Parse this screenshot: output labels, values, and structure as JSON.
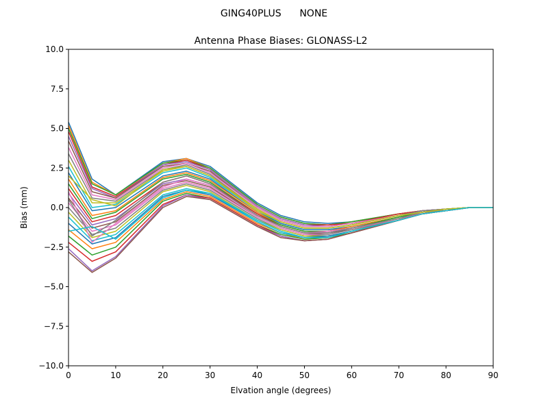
{
  "figure": {
    "suptitle": "GING40PLUS      NONE"
  },
  "chart_data": {
    "type": "line",
    "title": "Antenna Phase Biases: GLONASS-L2",
    "xlabel": "Elvation angle (degrees)",
    "ylabel": "Bias (mm)",
    "xlim": [
      0,
      90
    ],
    "ylim": [
      -10,
      10
    ],
    "xticks": [
      0,
      10,
      20,
      30,
      40,
      50,
      60,
      70,
      80,
      90
    ],
    "yticks": [
      -10.0,
      -7.5,
      -5.0,
      -2.5,
      0.0,
      2.5,
      5.0,
      7.5,
      10.0
    ],
    "xtick_labels": [
      "0",
      "10",
      "20",
      "30",
      "40",
      "50",
      "60",
      "70",
      "80",
      "90"
    ],
    "ytick_labels": [
      "−10.0",
      "−7.5",
      "−5.0",
      "−2.5",
      "0.0",
      "2.5",
      "5.0",
      "7.5",
      "10.0"
    ],
    "grid": false,
    "legend": "none",
    "x": [
      0,
      5,
      10,
      20,
      25,
      30,
      40,
      45,
      50,
      55,
      60,
      70,
      75,
      80,
      85,
      90
    ],
    "series_colors": [
      "#1f77b4",
      "#ff7f0e",
      "#2ca02c",
      "#d62728",
      "#9467bd",
      "#8c564b",
      "#e377c2",
      "#7f7f7f",
      "#bcbd22",
      "#17becf"
    ],
    "series": [
      {
        "values": [
          5.4,
          1.8,
          0.8,
          2.9,
          3.1,
          2.6,
          0.3,
          -0.5,
          -0.9,
          -1.0,
          -0.9,
          -0.4,
          -0.2,
          -0.1,
          0.0,
          0.0
        ]
      },
      {
        "values": [
          5.2,
          1.6,
          0.8,
          2.8,
          3.1,
          2.5,
          0.2,
          -0.6,
          -1.0,
          -1.1,
          -0.9,
          -0.4,
          -0.2,
          -0.1,
          0.0,
          0.0
        ]
      },
      {
        "values": [
          5.0,
          1.5,
          0.8,
          2.8,
          3.0,
          2.5,
          0.2,
          -0.6,
          -1.0,
          -1.1,
          -0.9,
          -0.4,
          -0.2,
          -0.1,
          0.0,
          0.0
        ]
      },
      {
        "values": [
          4.8,
          1.3,
          0.7,
          2.7,
          3.0,
          2.4,
          0.1,
          -0.7,
          -1.1,
          -1.1,
          -1.0,
          -0.4,
          -0.2,
          -0.1,
          0.0,
          0.0
        ]
      },
      {
        "values": [
          4.5,
          1.2,
          0.6,
          2.7,
          2.9,
          2.4,
          0.1,
          -0.7,
          -1.1,
          -1.2,
          -1.0,
          -0.5,
          -0.2,
          -0.1,
          0.0,
          0.0
        ]
      },
      {
        "values": [
          4.2,
          1.0,
          0.6,
          2.6,
          2.8,
          2.3,
          0.0,
          -0.8,
          -1.2,
          -1.2,
          -1.0,
          -0.5,
          -0.2,
          -0.1,
          0.0,
          0.0
        ]
      },
      {
        "values": [
          3.8,
          0.8,
          0.5,
          2.5,
          2.8,
          2.2,
          0.0,
          -0.8,
          -1.2,
          -1.2,
          -1.0,
          -0.5,
          -0.2,
          -0.1,
          0.0,
          0.0
        ]
      },
      {
        "values": [
          3.4,
          0.6,
          0.4,
          2.4,
          2.7,
          2.1,
          -0.1,
          -0.9,
          -1.3,
          -1.3,
          -1.1,
          -0.5,
          -0.2,
          -0.1,
          0.0,
          0.0
        ]
      },
      {
        "values": [
          3.0,
          0.3,
          0.3,
          2.3,
          2.6,
          2.0,
          -0.1,
          -0.9,
          -1.3,
          -1.3,
          -1.1,
          -0.5,
          -0.3,
          -0.1,
          0.0,
          0.0
        ]
      },
      {
        "values": [
          2.6,
          0.0,
          0.2,
          2.2,
          2.5,
          1.9,
          -0.2,
          -1.0,
          -1.4,
          -1.4,
          -1.2,
          -0.6,
          -0.3,
          -0.1,
          0.0,
          0.0
        ]
      },
      {
        "values": [
          2.2,
          -0.2,
          0.0,
          2.0,
          2.3,
          1.8,
          -0.3,
          -1.0,
          -1.4,
          -1.4,
          -1.2,
          -0.6,
          -0.3,
          -0.1,
          0.0,
          0.0
        ]
      },
      {
        "values": [
          1.8,
          -0.5,
          -0.2,
          1.9,
          2.2,
          1.7,
          -0.3,
          -1.1,
          -1.5,
          -1.5,
          -1.2,
          -0.6,
          -0.3,
          -0.1,
          0.0,
          0.0
        ]
      },
      {
        "values": [
          1.5,
          -0.7,
          -0.3,
          1.8,
          2.1,
          1.6,
          -0.4,
          -1.1,
          -1.5,
          -1.5,
          -1.3,
          -0.6,
          -0.3,
          -0.1,
          0.0,
          0.0
        ]
      },
      {
        "values": [
          1.2,
          -0.9,
          -0.5,
          1.6,
          2.0,
          1.5,
          -0.4,
          -1.2,
          -1.6,
          -1.5,
          -1.3,
          -0.7,
          -0.3,
          -0.2,
          0.0,
          0.0
        ]
      },
      {
        "values": [
          0.9,
          -1.1,
          -0.7,
          1.5,
          1.8,
          1.4,
          -0.5,
          -1.2,
          -1.6,
          -1.6,
          -1.3,
          -0.7,
          -0.3,
          -0.2,
          0.0,
          0.0
        ]
      },
      {
        "values": [
          0.6,
          -1.3,
          -0.9,
          1.4,
          1.7,
          1.3,
          -0.6,
          -1.3,
          -1.7,
          -1.6,
          -1.4,
          -0.7,
          -0.4,
          -0.2,
          0.0,
          0.0
        ]
      },
      {
        "values": [
          0.3,
          -1.5,
          -1.1,
          1.2,
          1.6,
          1.2,
          -0.6,
          -1.3,
          -1.7,
          -1.7,
          -1.4,
          -0.7,
          -0.4,
          -0.2,
          0.0,
          0.0
        ]
      },
      {
        "values": [
          0.0,
          -1.7,
          -1.3,
          1.1,
          1.5,
          1.1,
          -0.7,
          -1.4,
          -1.8,
          -1.7,
          -1.4,
          -0.8,
          -0.4,
          -0.2,
          0.0,
          0.0
        ]
      },
      {
        "values": [
          -0.3,
          -1.9,
          -1.5,
          1.0,
          1.4,
          1.0,
          -0.8,
          -1.4,
          -1.8,
          -1.8,
          -1.5,
          -0.8,
          -0.4,
          -0.2,
          0.0,
          0.0
        ]
      },
      {
        "values": [
          -0.6,
          -2.1,
          -1.7,
          0.8,
          1.2,
          0.9,
          -0.8,
          -1.5,
          -1.9,
          -1.8,
          -1.5,
          -0.8,
          -0.4,
          -0.2,
          0.0,
          0.0
        ]
      },
      {
        "values": [
          -1.0,
          -2.3,
          -1.9,
          0.7,
          1.1,
          0.8,
          -0.9,
          -1.6,
          -1.9,
          -1.8,
          -1.5,
          -0.8,
          -0.4,
          -0.2,
          0.0,
          0.0
        ]
      },
      {
        "values": [
          -1.4,
          -2.6,
          -2.2,
          0.5,
          1.0,
          0.7,
          -1.0,
          -1.6,
          -2.0,
          -1.9,
          -1.6,
          -0.8,
          -0.4,
          -0.2,
          0.0,
          0.0
        ]
      },
      {
        "values": [
          -1.8,
          -3.0,
          -2.5,
          0.4,
          0.9,
          0.6,
          -1.1,
          -1.7,
          -2.0,
          -1.9,
          -1.6,
          -0.8,
          -0.4,
          -0.2,
          0.0,
          0.0
        ]
      },
      {
        "values": [
          -2.2,
          -3.4,
          -2.8,
          0.2,
          0.8,
          0.6,
          -1.1,
          -1.8,
          -2.1,
          -2.0,
          -1.6,
          -0.8,
          -0.4,
          -0.2,
          0.0,
          0.0
        ]
      },
      {
        "values": [
          -2.6,
          -4.0,
          -3.1,
          0.1,
          0.8,
          0.5,
          -1.2,
          -1.8,
          -2.1,
          -2.0,
          -1.6,
          -0.8,
          -0.4,
          -0.2,
          0.0,
          0.0
        ]
      },
      {
        "values": [
          -2.8,
          -4.1,
          -3.2,
          0.0,
          0.7,
          0.5,
          -1.2,
          -1.9,
          -2.1,
          -2.0,
          -1.6,
          -0.8,
          -0.4,
          -0.2,
          0.0,
          0.0
        ]
      },
      {
        "values": [
          1.0,
          -2.2,
          -1.0,
          1.3,
          1.8,
          1.4,
          -0.5,
          -1.2,
          -1.6,
          -1.5,
          -1.3,
          -0.7,
          -0.3,
          -0.2,
          0.0,
          0.0
        ]
      },
      {
        "values": [
          0.5,
          -1.8,
          -0.8,
          1.6,
          2.0,
          1.5,
          -0.5,
          -1.2,
          -1.6,
          -1.6,
          -1.3,
          -0.7,
          -0.3,
          -0.2,
          0.0,
          0.0
        ]
      },
      {
        "values": [
          2.0,
          0.5,
          0.1,
          2.4,
          2.6,
          2.0,
          -0.2,
          -0.9,
          -1.3,
          -1.3,
          -1.1,
          -0.5,
          -0.3,
          -0.1,
          0.0,
          0.0
        ]
      },
      {
        "values": [
          -1.5,
          -1.2,
          -2.0,
          0.6,
          1.1,
          0.9,
          -0.9,
          -1.6,
          -1.9,
          -1.9,
          -1.5,
          -0.8,
          -0.4,
          -0.2,
          0.0,
          0.0
        ]
      }
    ]
  }
}
